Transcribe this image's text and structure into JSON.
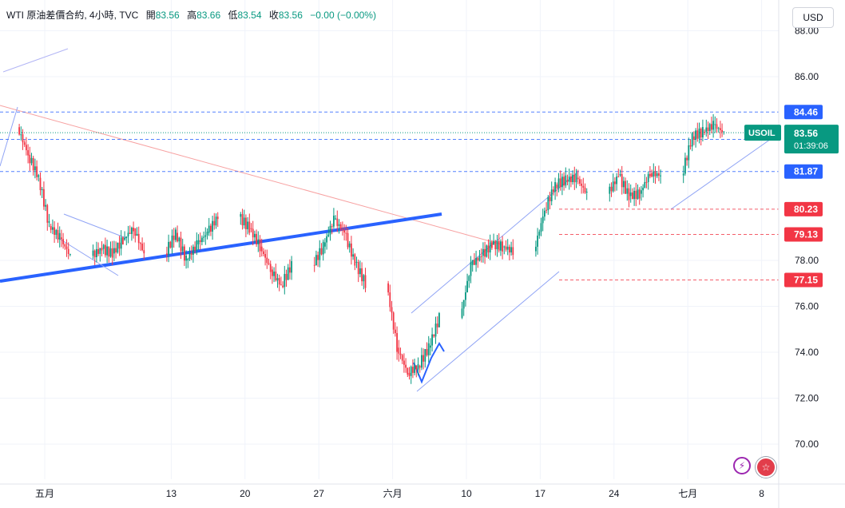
{
  "header": {
    "symbol": "WTI 原油差價合約, 4小時, TVC",
    "open_label": "開",
    "open": "83.56",
    "high_label": "高",
    "high": "83.66",
    "low_label": "低",
    "low": "83.54",
    "close_label": "收",
    "close": "83.56",
    "change": "−0.00 (−0.00%)"
  },
  "currency": "USD",
  "chart_data": {
    "type": "candlestick",
    "y_ticks": [
      "88.00",
      "86.00",
      "78.00",
      "76.00",
      "74.00",
      "72.00",
      "70.00"
    ],
    "y_tick_values": [
      88,
      86,
      78,
      76,
      74,
      72,
      70
    ],
    "ylim": [
      69,
      89.2
    ],
    "x_ticks": [
      "五月",
      "13",
      "20",
      "27",
      "六月",
      "10",
      "17",
      "24",
      "七月",
      "8"
    ],
    "x_tick_dates": [
      "2024-05-01",
      "2024-05-13",
      "2024-05-20",
      "2024-05-27",
      "2024-06-03",
      "2024-06-10",
      "2024-06-17",
      "2024-06-24",
      "2024-07-01",
      "2024-07-08"
    ],
    "series_close": [
      {
        "date": "2024-04-26",
        "close": 83.8
      },
      {
        "date": "2024-04-29",
        "close": 82.6
      },
      {
        "date": "2024-04-30",
        "close": 81.6
      },
      {
        "date": "2024-05-01",
        "close": 79.5
      },
      {
        "date": "2024-05-02",
        "close": 79.0
      },
      {
        "date": "2024-05-03",
        "close": 78.2
      },
      {
        "date": "2024-05-06",
        "close": 78.5
      },
      {
        "date": "2024-05-07",
        "close": 78.3
      },
      {
        "date": "2024-05-08",
        "close": 78.9
      },
      {
        "date": "2024-05-09",
        "close": 79.4
      },
      {
        "date": "2024-05-10",
        "close": 78.3
      },
      {
        "date": "2024-05-13",
        "close": 79.2
      },
      {
        "date": "2024-05-14",
        "close": 78.0
      },
      {
        "date": "2024-05-15",
        "close": 78.7
      },
      {
        "date": "2024-05-16",
        "close": 79.2
      },
      {
        "date": "2024-05-17",
        "close": 79.9
      },
      {
        "date": "2024-05-20",
        "close": 79.4
      },
      {
        "date": "2024-05-21",
        "close": 78.6
      },
      {
        "date": "2024-05-22",
        "close": 77.6
      },
      {
        "date": "2024-05-23",
        "close": 76.9
      },
      {
        "date": "2024-05-24",
        "close": 77.8
      },
      {
        "date": "2024-05-27",
        "close": 78.6
      },
      {
        "date": "2024-05-28",
        "close": 79.8
      },
      {
        "date": "2024-05-29",
        "close": 79.2
      },
      {
        "date": "2024-05-30",
        "close": 77.9
      },
      {
        "date": "2024-05-31",
        "close": 77.0
      },
      {
        "date": "2024-06-03",
        "close": 74.2
      },
      {
        "date": "2024-06-04",
        "close": 73.1
      },
      {
        "date": "2024-06-05",
        "close": 73.4
      },
      {
        "date": "2024-06-06",
        "close": 74.2
      },
      {
        "date": "2024-06-07",
        "close": 75.5
      },
      {
        "date": "2024-06-10",
        "close": 77.8
      },
      {
        "date": "2024-06-11",
        "close": 78.2
      },
      {
        "date": "2024-06-12",
        "close": 78.7
      },
      {
        "date": "2024-06-13",
        "close": 78.6
      },
      {
        "date": "2024-06-14",
        "close": 78.4
      },
      {
        "date": "2024-06-17",
        "close": 80.2
      },
      {
        "date": "2024-06-18",
        "close": 81.3
      },
      {
        "date": "2024-06-19",
        "close": 81.5
      },
      {
        "date": "2024-06-20",
        "close": 81.6
      },
      {
        "date": "2024-06-21",
        "close": 80.9
      },
      {
        "date": "2024-06-24",
        "close": 81.7
      },
      {
        "date": "2024-06-25",
        "close": 80.8
      },
      {
        "date": "2024-06-26",
        "close": 80.9
      },
      {
        "date": "2024-06-27",
        "close": 81.8
      },
      {
        "date": "2024-06-28",
        "close": 81.7
      },
      {
        "date": "2024-07-01",
        "close": 83.4
      },
      {
        "date": "2024-07-02",
        "close": 83.6
      },
      {
        "date": "2024-07-03",
        "close": 83.9
      },
      {
        "date": "2024-07-04",
        "close": 83.56
      }
    ],
    "price_levels": [
      {
        "label": "84.46",
        "value": 84.46,
        "color": "#2962ff",
        "text_color": "#ffffff",
        "line": "dashed-blue"
      },
      {
        "label": "83.27",
        "value": 83.27,
        "color": "#2962ff",
        "text_color": "#ffffff",
        "line": "dashed-blue"
      },
      {
        "label": "81.87",
        "value": 81.87,
        "color": "#2962ff",
        "text_color": "#ffffff",
        "line": "dashed-blue"
      },
      {
        "label": "80.23",
        "value": 80.23,
        "color": "#f23645",
        "text_color": "#ffffff",
        "line": "dashed-red"
      },
      {
        "label": "79.13",
        "value": 79.13,
        "color": "#f23645",
        "text_color": "#ffffff",
        "line": "dashed-red"
      },
      {
        "label": "77.15",
        "value": 77.15,
        "color": "#f23645",
        "text_color": "#ffffff",
        "line": "dashed-red"
      }
    ],
    "current_price": {
      "symbol": "USOIL",
      "price": "83.56",
      "countdown": "01:39:06",
      "value": 83.56,
      "color": "#089981"
    },
    "up_color": "#089981",
    "down_color": "#f23645"
  }
}
